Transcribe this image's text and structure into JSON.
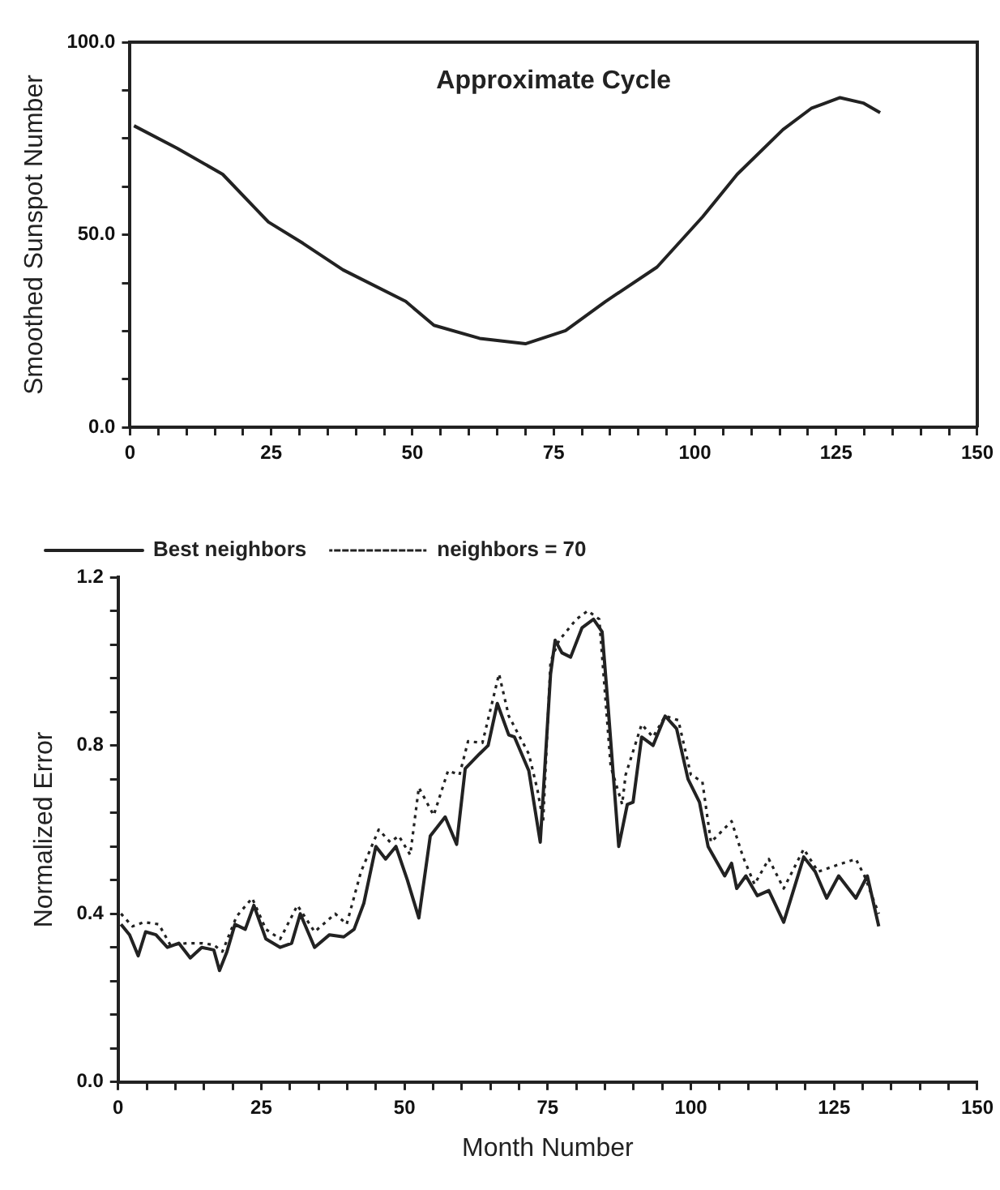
{
  "chart_data": [
    {
      "type": "line",
      "title": "Approximate Cycle",
      "ylabel": "Smoothed Sunspot Number",
      "xlim": [
        0,
        150
      ],
      "ylim": [
        0,
        100
      ],
      "xticks": [
        0,
        {
          "value": 5,
          "label": null
        },
        {
          "value": 10,
          "label": null
        },
        {
          "value": 15,
          "label": null
        },
        {
          "value": 20,
          "label": null
        },
        25,
        {
          "value": 30,
          "label": null
        },
        {
          "value": 35,
          "label": null
        },
        {
          "value": 40,
          "label": null
        },
        {
          "value": 45,
          "label": null
        },
        50,
        {
          "value": 55,
          "label": null
        },
        {
          "value": 60,
          "label": null
        },
        {
          "value": 65,
          "label": null
        },
        {
          "value": 70,
          "label": null
        },
        75,
        {
          "value": 80,
          "label": null
        },
        {
          "value": 85,
          "label": null
        },
        {
          "value": 90,
          "label": null
        },
        {
          "value": 95,
          "label": null
        },
        100,
        {
          "value": 105,
          "label": null
        },
        {
          "value": 110,
          "label": null
        },
        {
          "value": 115,
          "label": null
        },
        {
          "value": 120,
          "label": null
        },
        125,
        {
          "value": 130,
          "label": null
        },
        {
          "value": 135,
          "label": null
        },
        {
          "value": 140,
          "label": null
        },
        {
          "value": 145,
          "label": null
        },
        150
      ],
      "yticks": [
        {
          "value": 0,
          "label": "0.0"
        },
        {
          "value": 12.5,
          "label": null
        },
        {
          "value": 25,
          "label": null
        },
        {
          "value": 37.5,
          "label": null
        },
        {
          "value": 50,
          "label": "50.0"
        },
        {
          "value": 62.5,
          "label": null
        },
        {
          "value": 75,
          "label": null
        },
        {
          "value": 87.5,
          "label": null
        },
        {
          "value": 100,
          "label": "100.0"
        }
      ],
      "grid": false,
      "legend": false,
      "marker": "none",
      "line_style": "solid",
      "series": [
        {
          "color": "#222222",
          "x": [
            0.7,
            8.3,
            16.4,
            24.5,
            30.6,
            37.7,
            48.8,
            53.8,
            61.9,
            70,
            77.1,
            84.2,
            93.3,
            101.4,
            107.5,
            115.6,
            120.6,
            125.7,
            129.8,
            132.8
          ],
          "values": [
            78.3,
            72.5,
            65.7,
            53.3,
            47.8,
            40.9,
            32.7,
            26.5,
            23.1,
            21.7,
            25.1,
            32.7,
            41.6,
            54.7,
            65.7,
            77.3,
            82.8,
            85.6,
            84.2,
            81.7
          ]
        }
      ]
    },
    {
      "type": "line",
      "xlabel": "Month Number",
      "ylabel": "Normalized Error",
      "xlim": [
        0,
        150
      ],
      "ylim": [
        0,
        1.2
      ],
      "xticks": [
        0,
        {
          "value": 5,
          "label": null
        },
        {
          "value": 10,
          "label": null
        },
        {
          "value": 15,
          "label": null
        },
        {
          "value": 20,
          "label": null
        },
        25,
        {
          "value": 30,
          "label": null
        },
        {
          "value": 35,
          "label": null
        },
        {
          "value": 40,
          "label": null
        },
        {
          "value": 45,
          "label": null
        },
        50,
        {
          "value": 55,
          "label": null
        },
        {
          "value": 60,
          "label": null
        },
        {
          "value": 65,
          "label": null
        },
        {
          "value": 70,
          "label": null
        },
        75,
        {
          "value": 80,
          "label": null
        },
        {
          "value": 85,
          "label": null
        },
        {
          "value": 90,
          "label": null
        },
        {
          "value": 95,
          "label": null
        },
        100,
        {
          "value": 105,
          "label": null
        },
        {
          "value": 110,
          "label": null
        },
        {
          "value": 115,
          "label": null
        },
        {
          "value": 120,
          "label": null
        },
        125,
        {
          "value": 130,
          "label": null
        },
        {
          "value": 135,
          "label": null
        },
        {
          "value": 140,
          "label": null
        },
        {
          "value": 145,
          "label": null
        },
        150
      ],
      "yticks": [
        {
          "value": 0,
          "label": "0.0"
        },
        {
          "value": 0.08,
          "label": null
        },
        {
          "value": 0.16,
          "label": null
        },
        {
          "value": 0.24,
          "label": null
        },
        {
          "value": 0.32,
          "label": null
        },
        {
          "value": 0.4,
          "label": "0.4"
        },
        {
          "value": 0.48,
          "label": null
        },
        {
          "value": 0.56,
          "label": null
        },
        {
          "value": 0.64,
          "label": null
        },
        {
          "value": 0.72,
          "label": null
        },
        {
          "value": 0.8,
          "label": "0.8"
        },
        {
          "value": 0.88,
          "label": null
        },
        {
          "value": 0.96,
          "label": null
        },
        {
          "value": 1.04,
          "label": null
        },
        {
          "value": 1.12,
          "label": null
        },
        {
          "value": 1.2,
          "label": "1.2"
        }
      ],
      "grid": false,
      "legend": "top left",
      "marker": "none",
      "series": [
        {
          "name": "Best neighbors",
          "color": "#222222",
          "line_style": "solid",
          "x": [
            0.5,
            2,
            3.5,
            4.8,
            6.6,
            8.6,
            10.6,
            12.6,
            14.6,
            16.7,
            17.7,
            19,
            20.4,
            22.2,
            23.7,
            25.8,
            28.3,
            30.3,
            31.8,
            34.3,
            36.9,
            39.4,
            41.2,
            42.9,
            45,
            46.7,
            48.5,
            50.5,
            52.5,
            54.5,
            57.1,
            59.1,
            60.6,
            63.1,
            64.6,
            66.2,
            68.2,
            69.2,
            71.7,
            73.7,
            75.5,
            76.3,
            77.5,
            79,
            81,
            83,
            84.5,
            85.5,
            87.4,
            88.9,
            89.9,
            91.4,
            93.4,
            95.5,
            97.5,
            99.5,
            101.5,
            103,
            105.9,
            107.1,
            108,
            109.6,
            111.6,
            113.6,
            116.2,
            119.7,
            121.7,
            123.7,
            125.8,
            128.8,
            130.8,
            132.8
          ],
          "values": [
            0.375,
            0.35,
            0.3,
            0.357,
            0.35,
            0.32,
            0.33,
            0.295,
            0.32,
            0.314,
            0.265,
            0.31,
            0.375,
            0.363,
            0.42,
            0.34,
            0.32,
            0.33,
            0.4,
            0.32,
            0.35,
            0.345,
            0.363,
            0.425,
            0.56,
            0.53,
            0.56,
            0.48,
            0.39,
            0.585,
            0.63,
            0.565,
            0.745,
            0.78,
            0.8,
            0.9,
            0.825,
            0.82,
            0.74,
            0.57,
            0.97,
            1.05,
            1.02,
            1.01,
            1.08,
            1.1,
            1.07,
            0.9,
            0.56,
            0.66,
            0.665,
            0.82,
            0.8,
            0.87,
            0.84,
            0.72,
            0.665,
            0.56,
            0.49,
            0.52,
            0.46,
            0.49,
            0.443,
            0.455,
            0.38,
            0.535,
            0.5,
            0.437,
            0.49,
            0.437,
            0.49,
            0.37
          ]
        },
        {
          "name": "neighbors = 70",
          "color": "#222222",
          "line_style": "dotted",
          "x": [
            0.5,
            2.5,
            4.5,
            7.1,
            9.1,
            12.1,
            14.6,
            16.7,
            18.2,
            20.7,
            23.4,
            25.8,
            28.3,
            31.3,
            34.3,
            37.9,
            39.9,
            42.4,
            45.5,
            47.5,
            49,
            51,
            52.5,
            55.1,
            57.6,
            59.6,
            61.1,
            63.6,
            66.5,
            68.2,
            71.7,
            73.2,
            74.2,
            75.5,
            77,
            80,
            82,
            84,
            86,
            88,
            88.6,
            91.4,
            93.4,
            95.5,
            97.8,
            100,
            102,
            103.5,
            107.1,
            109.1,
            111.1,
            113.6,
            116.2,
            119.7,
            122.2,
            125.8,
            128.8,
            130.3,
            132.8
          ],
          "values": [
            0.4,
            0.37,
            0.38,
            0.375,
            0.326,
            0.33,
            0.33,
            0.326,
            0.31,
            0.394,
            0.437,
            0.363,
            0.34,
            0.42,
            0.357,
            0.4,
            0.375,
            0.5,
            0.6,
            0.57,
            0.585,
            0.54,
            0.7,
            0.634,
            0.74,
            0.73,
            0.81,
            0.806,
            0.97,
            0.87,
            0.78,
            0.695,
            0.62,
            1.0,
            1.05,
            1.1,
            1.12,
            1.1,
            0.75,
            0.66,
            0.73,
            0.85,
            0.82,
            0.87,
            0.86,
            0.73,
            0.714,
            0.57,
            0.62,
            0.535,
            0.47,
            0.53,
            0.46,
            0.554,
            0.5,
            0.517,
            0.53,
            0.49,
            0.4
          ]
        }
      ]
    }
  ]
}
